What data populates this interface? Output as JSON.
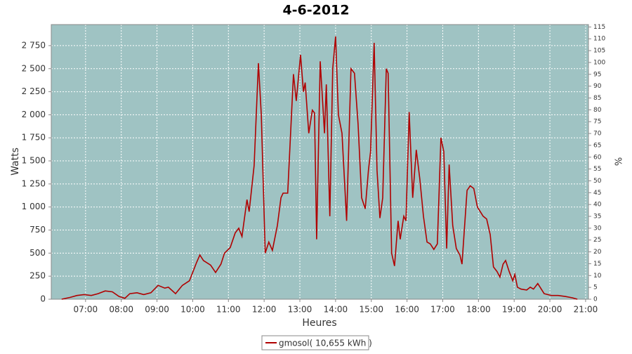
{
  "chart_data": {
    "type": "line",
    "title": "4-6-2012",
    "x_label": "Heures",
    "y_label": "Watts",
    "y2_label": "%",
    "x": [
      6.33,
      6.57,
      6.76,
      6.96,
      7.16,
      7.35,
      7.55,
      7.75,
      7.94,
      8.1,
      8.24,
      8.44,
      8.63,
      8.83,
      9.03,
      9.22,
      9.32,
      9.52,
      9.71,
      9.91,
      10.11,
      10.2,
      10.3,
      10.5,
      10.64,
      10.79,
      10.89,
      11.05,
      11.19,
      11.29,
      11.38,
      11.52,
      11.58,
      11.72,
      11.84,
      11.92,
      12.03,
      12.13,
      12.23,
      12.37,
      12.47,
      12.53,
      12.66,
      12.82,
      12.9,
      13.02,
      13.1,
      13.15,
      13.25,
      13.35,
      13.41,
      13.47,
      13.57,
      13.69,
      13.74,
      13.84,
      13.92,
      14.0,
      14.08,
      14.18,
      14.31,
      14.43,
      14.53,
      14.63,
      14.73,
      14.83,
      14.92,
      14.98,
      15.08,
      15.16,
      15.24,
      15.32,
      15.42,
      15.47,
      15.57,
      15.65,
      15.75,
      15.81,
      15.91,
      15.97,
      16.06,
      16.16,
      16.26,
      16.36,
      16.46,
      16.56,
      16.65,
      16.75,
      16.85,
      16.95,
      17.03,
      17.11,
      17.18,
      17.28,
      17.38,
      17.48,
      17.54,
      17.68,
      17.77,
      17.87,
      17.97,
      18.13,
      18.23,
      18.33,
      18.42,
      18.52,
      18.6,
      18.69,
      18.76,
      18.86,
      18.96,
      19.02,
      19.09,
      19.19,
      19.35,
      19.45,
      19.54,
      19.66,
      19.84,
      20.04,
      20.23,
      20.43,
      20.63,
      20.77
    ],
    "series": [
      {
        "name": "gmosol( 10,655 kWh )",
        "color": "#b00000",
        "values": [
          0,
          20,
          40,
          50,
          40,
          60,
          90,
          80,
          30,
          10,
          60,
          70,
          50,
          70,
          150,
          120,
          130,
          60,
          150,
          200,
          400,
          480,
          420,
          370,
          290,
          380,
          500,
          560,
          720,
          770,
          680,
          1080,
          950,
          1450,
          2560,
          2000,
          500,
          620,
          530,
          800,
          1100,
          1150,
          1150,
          2440,
          2150,
          2650,
          2250,
          2350,
          1800,
          2050,
          2020,
          650,
          2580,
          1800,
          2330,
          900,
          2500,
          2850,
          2000,
          1800,
          850,
          2500,
          2450,
          1900,
          1100,
          980,
          1400,
          1600,
          2780,
          1400,
          880,
          1100,
          2500,
          2450,
          500,
          360,
          850,
          650,
          900,
          850,
          2030,
          1100,
          1620,
          1300,
          900,
          620,
          600,
          540,
          600,
          1750,
          1600,
          550,
          1460,
          800,
          550,
          480,
          380,
          1180,
          1230,
          1200,
          1000,
          900,
          870,
          700,
          350,
          300,
          240,
          380,
          420,
          300,
          200,
          270,
          130,
          110,
          100,
          130,
          110,
          170,
          60,
          40,
          40,
          30,
          15,
          0
        ]
      }
    ],
    "xlim": [
      6.04,
      21.08
    ],
    "xticks": [
      {
        "value": 7,
        "label": "07:00"
      },
      {
        "value": 8,
        "label": "08:00"
      },
      {
        "value": 9,
        "label": "09:00"
      },
      {
        "value": 10,
        "label": "10:00"
      },
      {
        "value": 11,
        "label": "11:00"
      },
      {
        "value": 12,
        "label": "12:00"
      },
      {
        "value": 13,
        "label": "13:00"
      },
      {
        "value": 14,
        "label": "14:00"
      },
      {
        "value": 15,
        "label": "15:00"
      },
      {
        "value": 16,
        "label": "16:00"
      },
      {
        "value": 17,
        "label": "17:00"
      },
      {
        "value": 18,
        "label": "18:00"
      },
      {
        "value": 19,
        "label": "19:00"
      },
      {
        "value": 20,
        "label": "20:00"
      },
      {
        "value": 21,
        "label": "21:00"
      }
    ],
    "ylim": [
      0,
      2978
    ],
    "yticks": [
      0,
      250,
      500,
      750,
      {
        "value": 1000,
        "label": "1 000"
      },
      {
        "value": 1250,
        "label": "1 250"
      },
      {
        "value": 1500,
        "label": "1 500"
      },
      {
        "value": 1750,
        "label": "1 750"
      },
      {
        "value": 2000,
        "label": "2 000"
      },
      {
        "value": 2250,
        "label": "2 250"
      },
      {
        "value": 2500,
        "label": "2 500"
      },
      {
        "value": 2750,
        "label": "2 750"
      }
    ],
    "y2lim": [
      0,
      116
    ],
    "y2ticks": [
      0,
      5,
      10,
      15,
      20,
      25,
      30,
      35,
      40,
      45,
      50,
      55,
      60,
      65,
      70,
      75,
      80,
      85,
      90,
      95,
      100,
      105,
      110,
      115
    ],
    "grid": true
  }
}
